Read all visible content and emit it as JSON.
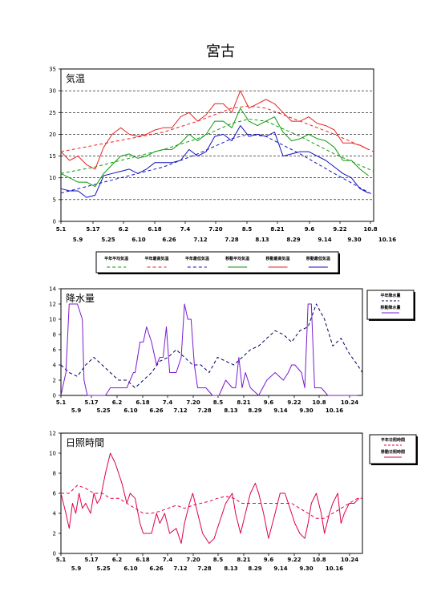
{
  "title": "宮古",
  "x_ticks_upper": [
    "5.1",
    "5.17",
    "6.2",
    "6.18",
    "7.4",
    "7.20",
    "8.5",
    "8.21",
    "9.6",
    "9.22",
    "10.8",
    "10.24"
  ],
  "x_ticks_lower": [
    "5.9",
    "5.25",
    "6.10",
    "6.26",
    "7.12",
    "7.28",
    "8.13",
    "8.29",
    "9.14",
    "9.30",
    "10.16"
  ],
  "colors": {
    "avg": "#0a9a0a",
    "max": "#ee2222",
    "min": "#1010c0",
    "precip": "#7a1ad0",
    "sun": "#e0004a",
    "normal_precip": "#000060"
  },
  "chart_data": [
    {
      "type": "line",
      "title": "気温",
      "ylim": [
        0,
        35
      ],
      "yticks": [
        0,
        5,
        10,
        15,
        20,
        25,
        30,
        35
      ],
      "grid": "dashed horizontal",
      "legend": {
        "placement": "bottom",
        "entries": [
          "平年平均気温",
          "平年最高気温",
          "平年最低気温",
          "移動平均気温",
          "移動最高気温",
          "移動最低気温"
        ]
      },
      "days": 184,
      "series": [
        {
          "name": "平年平均気温",
          "style": "dashed",
          "color": "avg",
          "x": [
            0,
            20,
            40,
            60,
            80,
            100,
            110,
            120,
            140,
            160,
            183
          ],
          "y": [
            11,
            12.5,
            14.5,
            16.5,
            19,
            22.5,
            23.5,
            23,
            19.5,
            15.5,
            11.5
          ]
        },
        {
          "name": "平年最高気温",
          "style": "dashed",
          "color": "max",
          "x": [
            0,
            20,
            40,
            60,
            80,
            100,
            110,
            120,
            140,
            160,
            183
          ],
          "y": [
            16,
            17.5,
            19,
            20.5,
            23,
            26,
            26.5,
            26,
            23,
            20,
            16
          ]
        },
        {
          "name": "平年最低気温",
          "style": "dashed",
          "color": "min",
          "x": [
            0,
            20,
            40,
            60,
            80,
            100,
            110,
            120,
            140,
            160,
            183
          ],
          "y": [
            6.5,
            8.5,
            10.5,
            12.5,
            15.5,
            19,
            20,
            19.5,
            15.5,
            11,
            6
          ]
        },
        {
          "name": "移動平均気温",
          "style": "solid",
          "color": "avg",
          "x": [
            0,
            5,
            10,
            15,
            20,
            25,
            30,
            35,
            40,
            45,
            50,
            55,
            60,
            65,
            70,
            75,
            80,
            85,
            90,
            95,
            100,
            105,
            110,
            115,
            120,
            125,
            130,
            135,
            140,
            145,
            150,
            155,
            160,
            165,
            170,
            175,
            180
          ],
          "y": [
            11,
            10,
            9,
            9,
            8,
            11,
            13,
            15,
            15.5,
            14.5,
            15,
            16,
            16.5,
            16.5,
            18,
            20,
            18.5,
            20,
            23,
            23,
            21.5,
            26,
            23,
            22,
            23,
            24,
            20.5,
            18.5,
            19,
            20,
            19,
            18.5,
            17,
            14,
            14,
            12,
            10.5
          ]
        },
        {
          "name": "移動最高気温",
          "style": "solid",
          "color": "max",
          "x": [
            0,
            5,
            10,
            15,
            20,
            25,
            30,
            35,
            40,
            45,
            50,
            55,
            60,
            65,
            70,
            75,
            80,
            85,
            90,
            95,
            100,
            105,
            110,
            115,
            120,
            125,
            130,
            135,
            140,
            145,
            150,
            155,
            160,
            165,
            170,
            175,
            180
          ],
          "y": [
            16,
            14,
            15,
            13,
            12,
            17,
            20,
            21.5,
            20,
            19.5,
            20,
            21,
            21.5,
            21.5,
            24,
            25,
            23,
            24.5,
            27,
            27,
            25,
            30,
            26,
            27,
            28,
            27,
            25,
            23,
            23,
            24,
            22.5,
            22,
            21,
            18,
            18,
            17.5,
            16.5
          ]
        },
        {
          "name": "移動最低気温",
          "style": "solid",
          "color": "min",
          "x": [
            0,
            5,
            10,
            15,
            20,
            25,
            30,
            35,
            40,
            45,
            50,
            55,
            60,
            65,
            70,
            75,
            80,
            85,
            90,
            95,
            100,
            105,
            110,
            115,
            120,
            125,
            130,
            135,
            140,
            145,
            150,
            155,
            160,
            165,
            170,
            175,
            180
          ],
          "y": [
            7.5,
            7,
            7,
            5.5,
            6,
            10.5,
            11,
            11.5,
            12,
            11,
            12,
            13.5,
            13.5,
            13.5,
            14,
            16.5,
            15,
            16,
            19.5,
            20,
            18.5,
            22,
            19.5,
            20,
            19.5,
            20.5,
            15,
            15.5,
            16,
            16,
            15,
            14,
            12.5,
            11,
            10,
            7.5,
            6.5
          ]
        }
      ]
    },
    {
      "type": "line",
      "title": "降水量",
      "ylim": [
        0,
        14
      ],
      "yticks": [
        0,
        2,
        4,
        6,
        8,
        10,
        12,
        14
      ],
      "legend": {
        "placement": "right",
        "entries": [
          "平年降水量",
          "移動降水量"
        ]
      },
      "days": 184,
      "series": [
        {
          "name": "平年降水量",
          "style": "dashed",
          "color": "normal_precip",
          "x": [
            0,
            5,
            10,
            15,
            20,
            25,
            30,
            35,
            40,
            45,
            50,
            55,
            60,
            65,
            70,
            75,
            80,
            85,
            90,
            95,
            100,
            105,
            110,
            115,
            120,
            125,
            130,
            135,
            140,
            145,
            150,
            155,
            160,
            165,
            170,
            175,
            180,
            183
          ],
          "y": [
            4,
            3,
            2.5,
            4,
            5,
            4,
            3,
            2,
            2,
            1,
            2,
            3,
            4.5,
            5,
            6,
            5,
            4,
            4,
            3,
            5,
            4.5,
            4,
            5,
            6,
            6.5,
            7.5,
            8.5,
            8,
            7,
            8.5,
            9,
            12,
            10,
            6.5,
            7.5,
            5.5,
            4,
            3
          ]
        },
        {
          "name": "移動降水量",
          "style": "solid",
          "color": "precip",
          "x": [
            0,
            3,
            5,
            8,
            10,
            13,
            14,
            16,
            18,
            22,
            27,
            30,
            35,
            40,
            42,
            44,
            45,
            48,
            50,
            52,
            55,
            58,
            60,
            62,
            64,
            66,
            70,
            73,
            75,
            77,
            79,
            81,
            83,
            85,
            88,
            92,
            96,
            100,
            104,
            106,
            108,
            110,
            112,
            115,
            120,
            125,
            130,
            135,
            138,
            140,
            142,
            146,
            148,
            150,
            152,
            154,
            158,
            162,
            166,
            170,
            174,
            178,
            180
          ],
          "y": [
            0,
            3,
            12,
            12,
            12,
            10,
            2,
            0,
            0,
            0,
            0,
            1,
            1,
            1,
            2,
            3,
            3,
            7,
            7,
            9,
            7,
            4,
            5,
            5,
            9,
            3,
            3,
            5,
            12,
            10,
            10,
            4,
            1,
            1,
            1,
            0,
            0,
            2,
            1,
            1,
            5,
            1,
            3,
            1,
            0,
            2,
            3,
            2,
            3,
            4,
            4,
            3,
            1,
            12,
            12,
            1,
            1,
            0,
            0,
            0,
            0,
            0,
            0
          ]
        }
      ]
    },
    {
      "type": "line",
      "title": "日照時間",
      "ylim": [
        0,
        12
      ],
      "yticks": [
        0,
        2,
        4,
        6,
        8,
        10,
        12
      ],
      "legend": {
        "placement": "right",
        "entries": [
          "平年日照時間",
          "移動日照時間"
        ]
      },
      "days": 184,
      "series": [
        {
          "name": "平年日照時間",
          "style": "dashed",
          "color": "sun",
          "x": [
            0,
            5,
            10,
            15,
            20,
            25,
            30,
            35,
            40,
            45,
            50,
            55,
            60,
            65,
            70,
            75,
            80,
            85,
            90,
            95,
            100,
            105,
            110,
            115,
            120,
            125,
            130,
            135,
            140,
            145,
            150,
            155,
            160,
            165,
            170,
            175,
            180,
            183
          ],
          "y": [
            6,
            6,
            6.8,
            6.5,
            6,
            6,
            5.5,
            5.5,
            5,
            4.5,
            4,
            4,
            4.2,
            4.5,
            4.8,
            4.5,
            4.8,
            5,
            5.2,
            5.5,
            5.7,
            5.5,
            5,
            5,
            5,
            5,
            5,
            5,
            5,
            4.5,
            4,
            3.5,
            3.5,
            4,
            4.5,
            5,
            5.5,
            5.5
          ]
        },
        {
          "name": "移動日照時間",
          "style": "solid",
          "color": "sun",
          "x": [
            0,
            3,
            5,
            7,
            9,
            11,
            13,
            15,
            18,
            20,
            22,
            24,
            27,
            30,
            33,
            35,
            37,
            40,
            42,
            45,
            48,
            50,
            53,
            55,
            58,
            60,
            63,
            66,
            70,
            73,
            75,
            78,
            80,
            83,
            86,
            90,
            93,
            96,
            100,
            104,
            106,
            109,
            112,
            115,
            118,
            120,
            123,
            126,
            130,
            133,
            136,
            140,
            142,
            145,
            148,
            150,
            152,
            155,
            158,
            160,
            163,
            165,
            168,
            170,
            172,
            175,
            178,
            181
          ],
          "y": [
            6,
            4,
            2.5,
            5,
            4,
            6,
            4.5,
            5,
            4,
            6,
            5,
            5.5,
            8,
            10,
            9,
            8,
            7,
            5,
            6,
            5.5,
            3,
            2,
            2,
            2,
            4,
            3,
            4,
            2,
            2.5,
            1,
            3,
            5,
            6,
            4,
            2,
            1,
            1.5,
            3,
            5,
            6,
            4,
            2,
            4,
            6,
            7,
            6,
            4,
            1.5,
            4,
            6,
            6,
            4,
            3,
            2,
            1.5,
            3,
            5,
            6,
            4,
            2,
            4,
            5,
            6,
            3,
            4,
            5,
            5,
            5.5
          ]
        }
      ]
    }
  ]
}
